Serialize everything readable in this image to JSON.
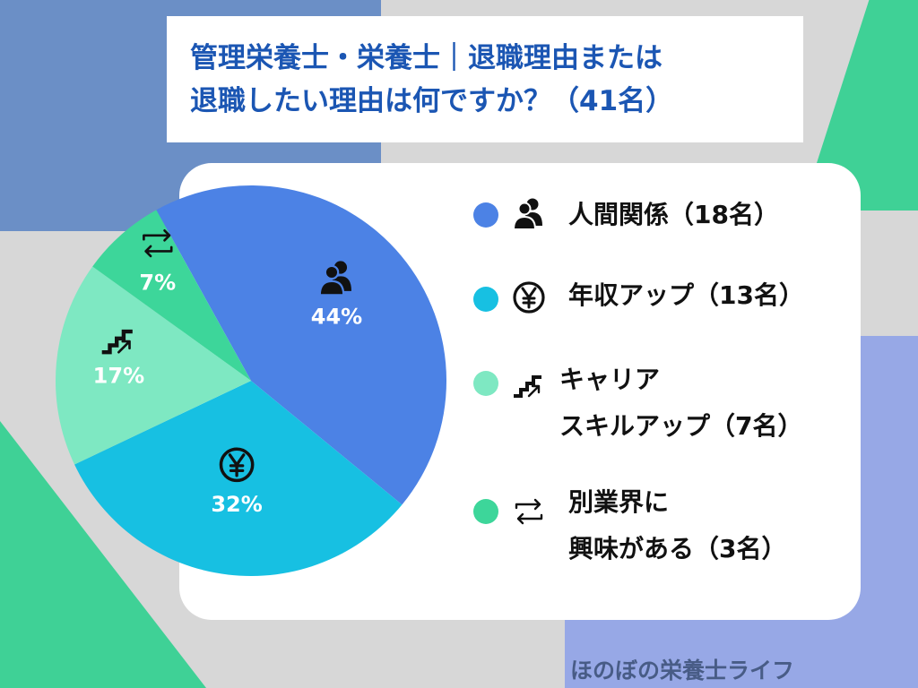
{
  "title": {
    "line1": "管理栄養士・栄養士｜退職理由または",
    "line2": "退職したい理由は何ですか？（41名）"
  },
  "chart_data": {
    "type": "pie",
    "categories": [
      "人間関係",
      "年収アップ",
      "キャリアスキルアップ",
      "別業界に興味がある"
    ],
    "counts": [
      18,
      13,
      7,
      3
    ],
    "values": [
      44,
      32,
      17,
      7
    ],
    "labels": [
      "44%",
      "32%",
      "17%",
      "7%"
    ],
    "colors": [
      "#4c82e5",
      "#17c0e2",
      "#7ee8c2",
      "#3dd69a"
    ],
    "icons": [
      "people-icon",
      "yen-icon",
      "stairs-icon",
      "switch-icon"
    ],
    "legend_placement": "right"
  },
  "legend": [
    {
      "lines": [
        "人間関係（18名）"
      ],
      "color": "#4c82e5",
      "icon": "people-icon"
    },
    {
      "lines": [
        "年収アップ（13名）"
      ],
      "color": "#17c0e2",
      "icon": "yen-icon"
    },
    {
      "lines": [
        "キャリア",
        "スキルアップ（7名）"
      ],
      "color": "#7ee8c2",
      "icon": "stairs-icon"
    },
    {
      "lines": [
        "別業界に",
        "興味がある（3名）"
      ],
      "color": "#3dd69a",
      "icon": "switch-icon"
    }
  ],
  "watermark": "ほのぼの栄養士ライフ"
}
